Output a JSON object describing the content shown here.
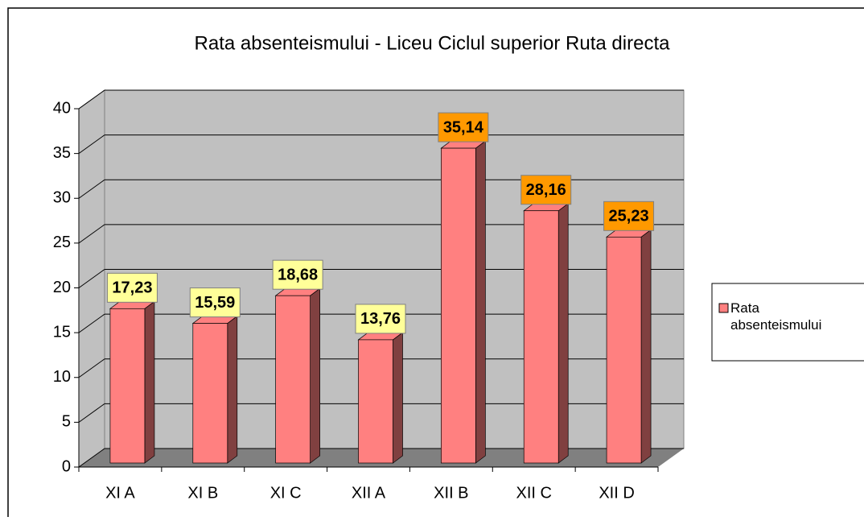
{
  "chart_data": {
    "type": "bar",
    "title": "Rata absenteismului - Liceu Ciclul superior Ruta directa",
    "categories": [
      "XI A",
      "XI B",
      "XI C",
      "XII A",
      "XII B",
      "XII C",
      "XII D"
    ],
    "series": [
      {
        "name": "Rata absenteismului",
        "color": "#ff8080",
        "values": [
          17.23,
          15.59,
          18.68,
          13.76,
          35.14,
          28.16,
          25.23
        ],
        "value_labels": [
          "17,23",
          "15,59",
          "18,68",
          "13,76",
          "35,14",
          "28,16",
          "25,23"
        ],
        "label_colors": [
          "#ffff99",
          "#ffff99",
          "#ffff99",
          "#ffff99",
          "#ff9900",
          "#ff9900",
          "#ff9900"
        ]
      }
    ],
    "ylim": [
      0,
      40
    ],
    "yticks": [
      0,
      5,
      10,
      15,
      20,
      25,
      30,
      35,
      40
    ],
    "grid": true,
    "legend": "right"
  }
}
